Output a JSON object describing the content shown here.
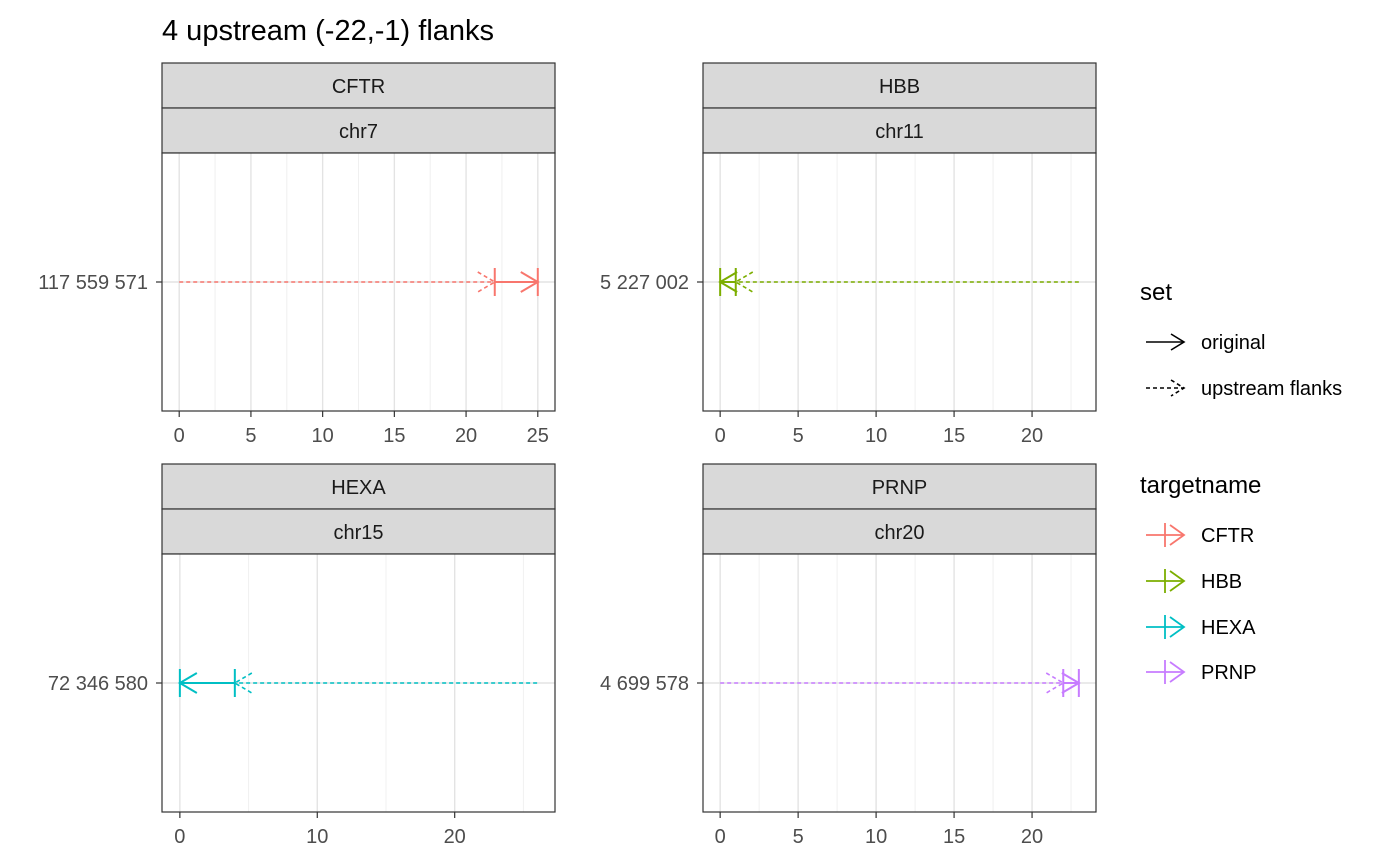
{
  "chart_data": {
    "type": "faceted-range",
    "title": "4 upstream (-22,-1) flanks",
    "xlabel": "",
    "ylabel": "",
    "grid": true,
    "legend_position": "right",
    "facets": [
      {
        "strip_top": "CFTR",
        "strip_bottom": "chr7",
        "y_tick_label": "117 559 571",
        "color": "#F8766D",
        "xlim": [
          -1.2,
          26.2
        ],
        "x_ticks": [
          0,
          5,
          10,
          15,
          20,
          25
        ],
        "x_minor": [
          2.5,
          7.5,
          12.5,
          17.5,
          22.5
        ],
        "original": {
          "start": 22,
          "end": 25,
          "direction": "forward"
        },
        "flank": {
          "start": 0,
          "end": 22,
          "direction": "forward"
        }
      },
      {
        "strip_top": "HBB",
        "strip_bottom": "chr11",
        "y_tick_label": "5 227 002",
        "color": "#7CAE00",
        "xlim": [
          -1.1,
          24.1
        ],
        "x_ticks": [
          0,
          5,
          10,
          15,
          20
        ],
        "x_minor": [
          2.5,
          7.5,
          12.5,
          17.5,
          22.5
        ],
        "original": {
          "start": 0,
          "end": 1,
          "direction": "reverse"
        },
        "flank": {
          "start": 1,
          "end": 23,
          "direction": "reverse"
        }
      },
      {
        "strip_top": "HEXA",
        "strip_bottom": "chr15",
        "y_tick_label": "72 346 580",
        "color": "#00BFC4",
        "xlim": [
          -1.3,
          27.3
        ],
        "x_ticks": [
          0,
          10,
          20
        ],
        "x_minor": [
          5,
          15,
          25
        ],
        "original": {
          "start": 0,
          "end": 4,
          "direction": "reverse"
        },
        "flank": {
          "start": 4,
          "end": 26,
          "direction": "reverse"
        }
      },
      {
        "strip_top": "PRNP",
        "strip_bottom": "chr20",
        "y_tick_label": "4 699 578",
        "color": "#C77CFF",
        "xlim": [
          -1.1,
          24.1
        ],
        "x_ticks": [
          0,
          5,
          10,
          15,
          20
        ],
        "x_minor": [
          2.5,
          7.5,
          12.5,
          17.5,
          22.5
        ],
        "original": {
          "start": 22,
          "end": 23,
          "direction": "forward"
        },
        "flank": {
          "start": 0,
          "end": 22,
          "direction": "forward"
        }
      }
    ],
    "legends": [
      {
        "title": "set",
        "items": [
          {
            "label": "original",
            "linetype": "solid",
            "color": "#000000"
          },
          {
            "label": "upstream flanks",
            "linetype": "dashed",
            "color": "#000000"
          }
        ]
      },
      {
        "title": "targetname",
        "items": [
          {
            "label": "CFTR",
            "color": "#F8766D"
          },
          {
            "label": "HBB",
            "color": "#7CAE00"
          },
          {
            "label": "HEXA",
            "color": "#00BFC4"
          },
          {
            "label": "PRNP",
            "color": "#C77CFF"
          }
        ]
      }
    ]
  }
}
